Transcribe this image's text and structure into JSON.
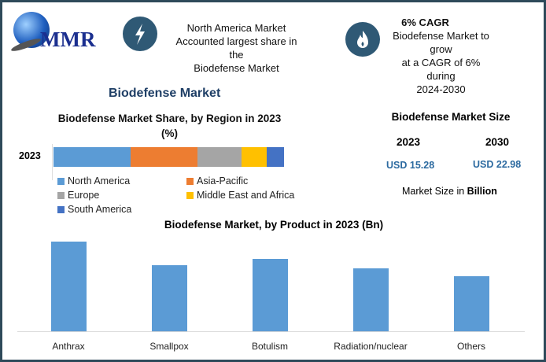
{
  "logo": {
    "text": "MMR"
  },
  "info1": {
    "icon": "lightning-icon",
    "lines": [
      "North America Market",
      "Accounted largest share in the",
      "Biodefense Market"
    ]
  },
  "info2": {
    "icon": "flame-icon",
    "title": "6% CAGR",
    "lines": [
      "Biodefense Market to grow",
      "at a CAGR of 6% during",
      "2024-2030"
    ]
  },
  "section_title": "Biodefense Market",
  "market_size": {
    "title": "Biodefense Market Size",
    "years": [
      "2023",
      "2030"
    ],
    "values": [
      "USD 15.28",
      "USD 22.98"
    ],
    "note_prefix": "Market Size in ",
    "note_bold": "Billion"
  },
  "chart_data": [
    {
      "type": "bar",
      "orientation": "horizontal-stacked",
      "title": "Biodefense Market Share, by Region in 2023",
      "subtitle": "(%)",
      "categories": [
        "2023"
      ],
      "series": [
        {
          "name": "North America",
          "values": [
            33.5
          ],
          "color": "#5b9bd5"
        },
        {
          "name": "Asia-Pacific",
          "values": [
            29
          ],
          "color": "#ed7d31"
        },
        {
          "name": "Europe",
          "values": [
            19
          ],
          "color": "#a5a5a5"
        },
        {
          "name": "Middle East and Africa",
          "values": [
            11
          ],
          "color": "#ffc000"
        },
        {
          "name": "South America",
          "values": [
            7.5
          ],
          "color": "#4472c4"
        }
      ],
      "legend": "bottom"
    },
    {
      "type": "bar",
      "title": "Biodefense Market, by Product in 2023 (Bn)",
      "categories": [
        "Anthrax",
        "Smallpox",
        "Botulism",
        "Radiation/nuclear",
        "Others"
      ],
      "values": [
        3.94,
        2.9,
        3.21,
        2.79,
        2.44
      ],
      "color": "#5b9bd5",
      "ylim": [
        0,
        4.2
      ],
      "grid": false
    }
  ]
}
